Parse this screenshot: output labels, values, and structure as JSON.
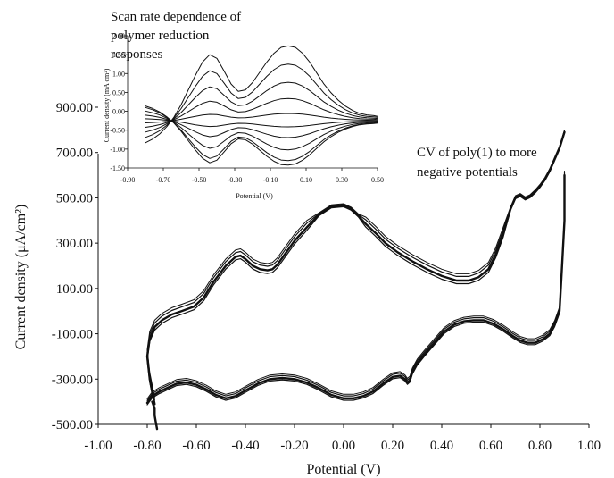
{
  "chart_data": [
    {
      "type": "line",
      "xlabel": "Potential (V)",
      "ylabel": "Current density (μA/cm²)",
      "xlim": [
        -1.0,
        1.0
      ],
      "ylim": [
        -500,
        1000
      ],
      "x_ticks": [
        "-1.00",
        "-0.80",
        "-0.60",
        "-0.40",
        "-0.20",
        "0.00",
        "0.20",
        "0.40",
        "0.60",
        "0.80",
        "1.00"
      ],
      "y_ticks": [
        "-500.00",
        "-300.00",
        "-100.00",
        "100.00",
        "300.00",
        "500.00",
        "700.00",
        "900.00"
      ],
      "annotation": {
        "line1": "CV of poly(1) to more",
        "line2": "negative potentials"
      },
      "series": [
        {
          "branch": "anodic",
          "x": [
            -0.77,
            -0.79,
            -0.8,
            -0.79,
            -0.77,
            -0.74,
            -0.7,
            -0.66,
            -0.61,
            -0.57,
            -0.53,
            -0.48,
            -0.44,
            -0.42,
            -0.4,
            -0.37,
            -0.34,
            -0.31,
            -0.29,
            -0.27,
            -0.24,
            -0.2,
            -0.15,
            -0.1,
            -0.05,
            0.0,
            0.03,
            0.06,
            0.09,
            0.13,
            0.17,
            0.22,
            0.28,
            0.34,
            0.4,
            0.46,
            0.51,
            0.55,
            0.59,
            0.62,
            0.65,
            0.68,
            0.7,
            0.72,
            0.74,
            0.76,
            0.78,
            0.8,
            0.82,
            0.84,
            0.86,
            0.88,
            0.9
          ],
          "y": [
            -410,
            -300,
            -200,
            -120,
            -70,
            -40,
            -15,
            0,
            20,
            60,
            130,
            200,
            240,
            245,
            230,
            200,
            185,
            180,
            185,
            205,
            250,
            310,
            370,
            425,
            460,
            465,
            450,
            420,
            385,
            345,
            300,
            260,
            220,
            185,
            155,
            135,
            135,
            150,
            185,
            250,
            340,
            450,
            500,
            510,
            495,
            505,
            525,
            550,
            580,
            620,
            670,
            720,
            790
          ]
        },
        {
          "branch": "cathodic",
          "x": [
            0.9,
            0.9,
            0.89,
            0.88,
            0.86,
            0.84,
            0.81,
            0.78,
            0.75,
            0.72,
            0.69,
            0.65,
            0.61,
            0.57,
            0.53,
            0.49,
            0.45,
            0.41,
            0.37,
            0.33,
            0.3,
            0.28,
            0.27,
            0.26,
            0.25,
            0.23,
            0.2,
            0.16,
            0.12,
            0.08,
            0.04,
            0.0,
            -0.05,
            -0.1,
            -0.15,
            -0.2,
            -0.25,
            -0.3,
            -0.35,
            -0.4,
            -0.44,
            -0.48,
            -0.52,
            -0.56,
            -0.6,
            -0.64,
            -0.68,
            -0.72,
            -0.75,
            -0.78,
            -0.8
          ],
          "y": [
            600,
            400,
            200,
            0,
            -60,
            -100,
            -125,
            -140,
            -140,
            -130,
            -110,
            -80,
            -55,
            -40,
            -40,
            -45,
            -60,
            -90,
            -140,
            -190,
            -230,
            -270,
            -305,
            -315,
            -300,
            -285,
            -290,
            -320,
            -355,
            -375,
            -385,
            -385,
            -370,
            -340,
            -315,
            -300,
            -295,
            -300,
            -320,
            -350,
            -375,
            -385,
            -370,
            -345,
            -325,
            -315,
            -320,
            -340,
            -355,
            -375,
            -405
          ]
        },
        {
          "branch": "negative-tail",
          "x": [
            -0.78,
            -0.77,
            -0.77,
            -0.765,
            -0.76
          ],
          "y": [
            -400,
            -430,
            -460,
            -490,
            -520
          ]
        }
      ]
    },
    {
      "type": "line",
      "title": "Scan rate dependence of polymer reduction responses",
      "title_lines": [
        "Scan rate dependence of",
        "polymer reduction",
        "responses"
      ],
      "xlabel": "Potential (V)",
      "ylabel": "Current density (mA cm²)",
      "xlim": [
        -0.9,
        0.5
      ],
      "ylim": [
        -1.5,
        2.0
      ],
      "x_ticks": [
        "-0.90",
        "-0.70",
        "-0.50",
        "-0.30",
        "-0.10",
        "0.10",
        "0.30",
        "0.50"
      ],
      "y_ticks": [
        "2.00",
        "1.50",
        "1.00",
        "0.50",
        "0.00",
        "-0.50",
        "-1.00",
        "-1.50"
      ],
      "base_x": [
        -0.8,
        -0.76,
        -0.72,
        -0.68,
        -0.64,
        -0.6,
        -0.56,
        -0.52,
        -0.48,
        -0.44,
        -0.4,
        -0.36,
        -0.32,
        -0.28,
        -0.24,
        -0.2,
        -0.16,
        -0.12,
        -0.08,
        -0.04,
        0.0,
        0.04,
        0.08,
        0.12,
        0.16,
        0.2,
        0.24,
        0.28,
        0.32,
        0.36,
        0.4,
        0.44,
        0.48,
        0.5
      ],
      "base_shape": [
        -0.3,
        -0.25,
        -0.18,
        -0.08,
        0.05,
        0.22,
        0.42,
        0.62,
        0.8,
        0.9,
        0.85,
        0.68,
        0.5,
        0.4,
        0.42,
        0.52,
        0.66,
        0.8,
        0.92,
        1.0,
        1.02,
        1.0,
        0.92,
        0.8,
        0.65,
        0.5,
        0.38,
        0.28,
        0.2,
        0.14,
        0.1,
        0.08,
        0.07,
        0.06
      ],
      "anodic_scale": [
        0.18,
        0.55,
        0.95,
        1.4,
        1.85
      ],
      "cathodic_scale": [
        -0.2,
        -0.55,
        -0.95,
        -1.3,
        -1.45
      ]
    }
  ]
}
